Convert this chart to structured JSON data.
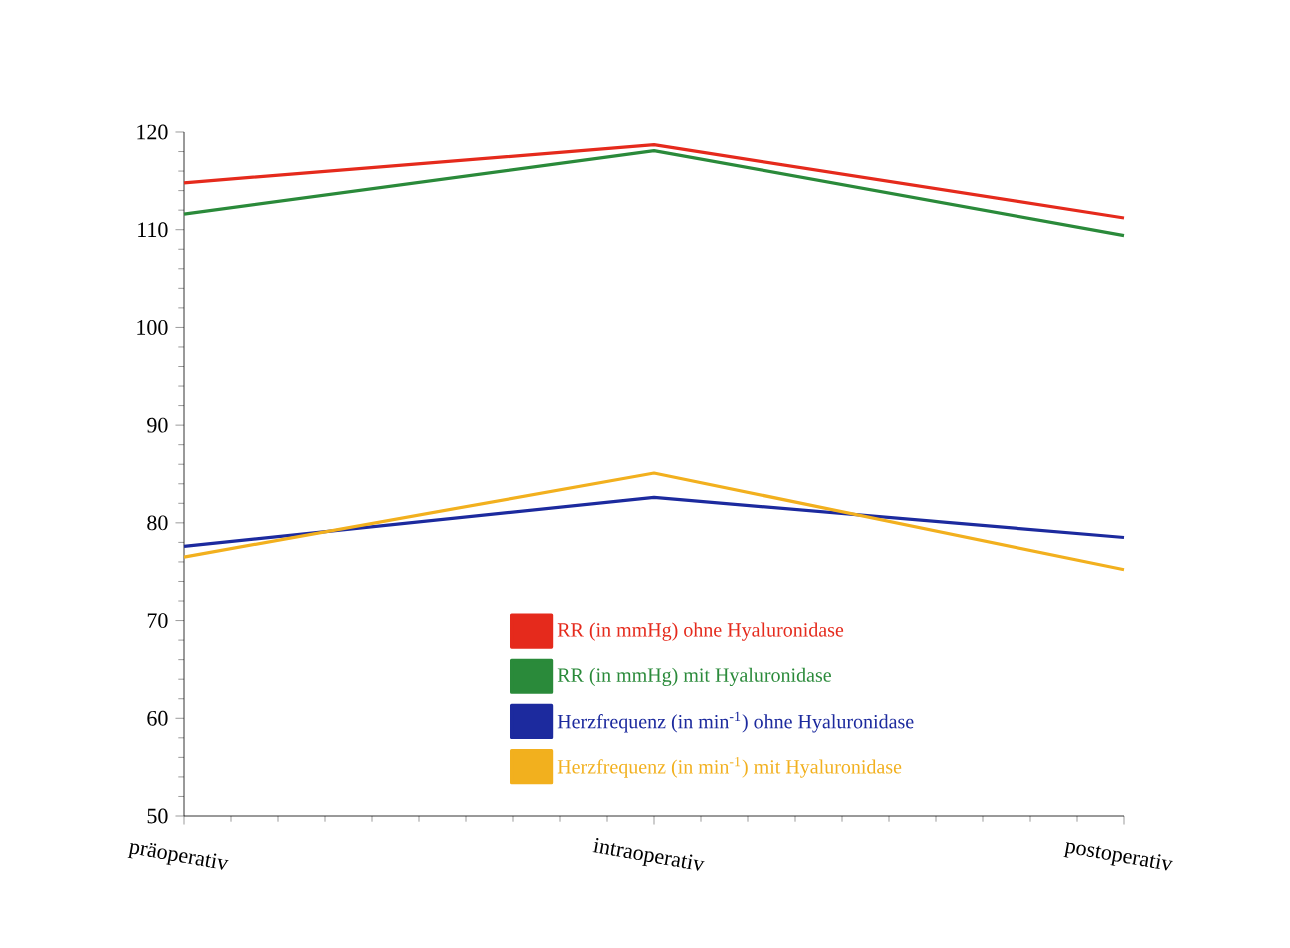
{
  "chart_data": {
    "type": "line",
    "categories": [
      "präoperativ",
      "intraoperativ",
      "postoperativ"
    ],
    "series": [
      {
        "name": "RR (in mmHg) ohne Hyaluronidase",
        "color": "#e52a1c",
        "values": [
          114.8,
          118.7,
          111.2
        ]
      },
      {
        "name": "RR (in mmHg) mit Hyaluronidase",
        "color": "#2a8a3a",
        "values": [
          111.6,
          118.1,
          109.4
        ]
      },
      {
        "name": "Herzfrequenz (in min$^{-1}$) ohne Hyaluronidase",
        "color": "#1c2a9e",
        "values": [
          77.6,
          82.6,
          78.5
        ]
      },
      {
        "name": "Herzfrequenz (in min$^{-1}$) mit Hyaluronidase",
        "color": "#f2b01e",
        "values": [
          76.5,
          85.1,
          75.2
        ]
      }
    ],
    "ylim": [
      50,
      120
    ],
    "yticks": [
      50,
      60,
      70,
      80,
      90,
      100,
      110,
      120
    ],
    "grid": false,
    "legend": "right",
    "marker": "none",
    "line_style": "solid"
  }
}
